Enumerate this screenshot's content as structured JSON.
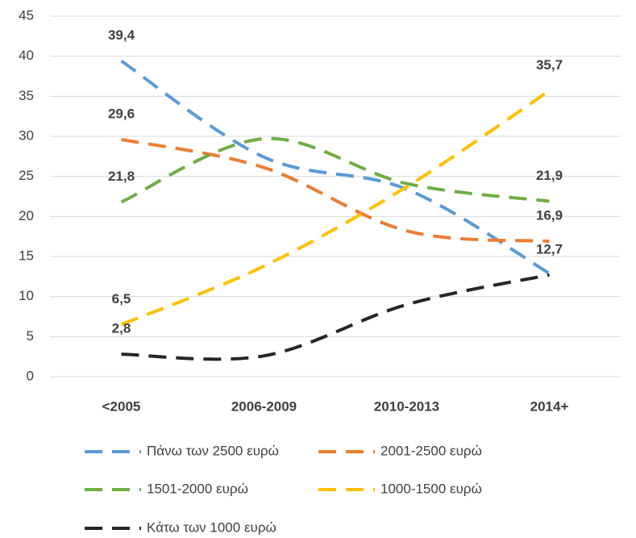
{
  "chart_data": {
    "type": "line",
    "categories": [
      "<2005",
      "2006-2009",
      "2010-2013",
      "2014+"
    ],
    "ylim": [
      0,
      45
    ],
    "yticks": [
      0,
      5,
      10,
      15,
      20,
      25,
      30,
      35,
      40,
      45
    ],
    "grid": true,
    "series": [
      {
        "name": "Πάνω των 2500 ευρώ",
        "color": "#5b9bd5",
        "values": [
          39.4,
          27.4,
          23.4,
          12.9
        ],
        "value_labels": [
          "39,4",
          null,
          null,
          null
        ]
      },
      {
        "name": "2001-2500 ευρώ",
        "color": "#ed7d31",
        "values": [
          29.6,
          26.1,
          18.2,
          16.9
        ],
        "value_labels": [
          "29,6",
          null,
          null,
          "16,9"
        ]
      },
      {
        "name": "1501-2000 ευρώ",
        "color": "#70ad47",
        "values": [
          21.8,
          29.7,
          24.1,
          21.9
        ],
        "value_labels": [
          "21,8",
          null,
          null,
          "21,9"
        ]
      },
      {
        "name": "1000-1500 ευρώ",
        "color": "#ffc000",
        "values": [
          6.5,
          13.8,
          23.7,
          35.7
        ],
        "value_labels": [
          "6,5",
          null,
          null,
          "35,7"
        ]
      },
      {
        "name": "Κάτω των 1000 ευρώ",
        "color": "#262626",
        "values": [
          2.8,
          2.6,
          9.0,
          12.7
        ],
        "value_labels": [
          "2,8",
          null,
          null,
          "12,7"
        ]
      }
    ]
  }
}
